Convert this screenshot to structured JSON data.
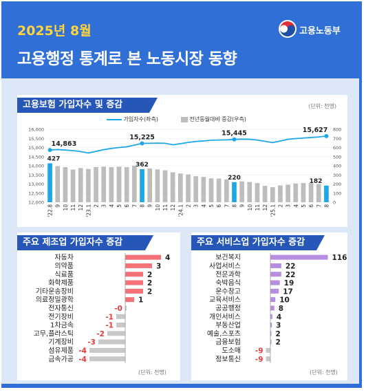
{
  "header": {
    "date": "2025년 8월",
    "title": "고용행정 통계로 본 노동시장 동향",
    "logo_text": "고용노동부"
  },
  "colors": {
    "line": "#1ea7e8",
    "highlight_bar": "#1ea7e8",
    "bar": "#bdbdbd",
    "manufacturing_bar_pos": "#f47178",
    "manufacturing_bar_neg": "#c8c8c8",
    "service_bar": "#b58ee0",
    "service_bar_neg": "#c8c8c8"
  },
  "top_chart": {
    "title": "고용보험 가입자수 및 증감",
    "unit": "(단위: 천명)",
    "legend_line": "가입자수(좌측)",
    "legend_bar": "전년동월대비 증감(우측)"
  },
  "chart_data": [
    {
      "type": "bar+line",
      "x": [
        "'22.8",
        "9",
        "10",
        "11",
        "12",
        "'23.1",
        "2",
        "3",
        "4",
        "5",
        "6",
        "7",
        "8",
        "9",
        "10",
        "11",
        "12",
        "'24.1",
        "2",
        "3",
        "4",
        "5",
        "6",
        "7",
        "8",
        "9",
        "10",
        "11",
        "12",
        "'25.1",
        "2",
        "3",
        "4",
        "5",
        "6",
        "7",
        "8"
      ],
      "series": [
        {
          "name": "가입자수(좌측)",
          "type": "line",
          "axis": "left",
          "values": [
            14863,
            14890,
            14860,
            14830,
            14780,
            14700,
            14790,
            14880,
            14950,
            15000,
            15040,
            15130,
            15225,
            15230,
            15240,
            15230,
            15150,
            15210,
            15280,
            15330,
            15360,
            15400,
            15410,
            15420,
            15445,
            15460,
            15450,
            15410,
            15340,
            15270,
            15360,
            15450,
            15490,
            15520,
            15550,
            15580,
            15627
          ]
        },
        {
          "name": "전년동월대비 증감(우측)",
          "type": "bar",
          "axis": "right",
          "values": [
            427,
            395,
            385,
            358,
            375,
            365,
            385,
            390,
            385,
            390,
            385,
            400,
            362,
            370,
            360,
            350,
            328,
            315,
            305,
            285,
            278,
            262,
            260,
            250,
            220,
            228,
            222,
            210,
            180,
            165,
            185,
            192,
            205,
            210,
            210,
            200,
            182
          ],
          "highlight_indices": [
            0,
            12,
            24,
            36
          ]
        }
      ],
      "labels": {
        "line": [
          "14,863",
          "15,225",
          "15,445",
          "15,627"
        ],
        "bar": [
          "427",
          "362",
          "220",
          "182"
        ],
        "label_indices": [
          0,
          12,
          24,
          36
        ]
      },
      "y_left": {
        "range": [
          12000,
          16000
        ],
        "ticks": [
          "12,000",
          "12,500",
          "13,000",
          "13,500",
          "14,000",
          "14,500",
          "15,000",
          "15,500",
          "16,000"
        ]
      },
      "y_right": {
        "range": [
          0,
          800
        ],
        "ticks": [
          "0",
          "100",
          "200",
          "300",
          "400",
          "500",
          "600",
          "700",
          "800"
        ]
      },
      "legend_position": "top"
    },
    {
      "type": "bar",
      "title": "주요 제조업 가입자수 증감",
      "unit": "(단위: 천명)",
      "categories": [
        "자동차",
        "의약품",
        "식료품",
        "화학제품",
        "기타운송장비",
        "의료정밀광학",
        "전자통신",
        "전기장비",
        "1차금속",
        "고무,플라스틱",
        "기계장비",
        "섬유제품",
        "금속가공"
      ],
      "values": [
        4,
        3,
        2,
        2,
        2,
        1,
        0,
        -1,
        -1,
        -2,
        -3,
        -4,
        -4
      ],
      "value_labels": [
        "4",
        "3",
        "2",
        "2",
        "2",
        "1",
        "-0",
        "-1",
        "-1",
        "-2",
        "-3",
        "-4",
        "-4"
      ]
    },
    {
      "type": "bar",
      "title": "주요 서비스업 가입자수 증감",
      "unit": "(단위: 천명)",
      "categories": [
        "보건복지",
        "사업서비스",
        "전문과학",
        "숙박음식",
        "운수창고",
        "교육서비스",
        "공공행정",
        "개인서비스",
        "부동산업",
        "예술,스포츠",
        "금융보험",
        "도소매",
        "정보통신"
      ],
      "values": [
        116,
        22,
        22,
        19,
        17,
        10,
        8,
        4,
        3,
        2,
        2,
        -9,
        -9
      ],
      "value_labels": [
        "116",
        "22",
        "22",
        "19",
        "17",
        "10",
        "8",
        "4",
        "3",
        "2",
        "2",
        "-9",
        "-9"
      ]
    }
  ]
}
